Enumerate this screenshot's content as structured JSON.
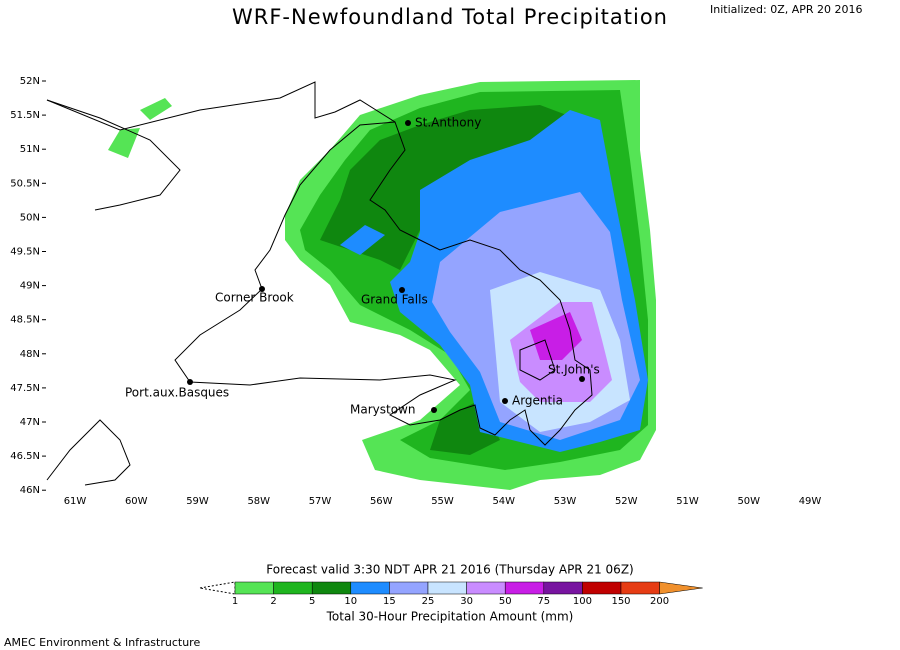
{
  "header": {
    "title": "WRF-Newfoundland Total Precipitation",
    "initialized": "Initialized: 0Z, APR 20 2016"
  },
  "map": {
    "lat_labels": [
      "52N",
      "51.5N",
      "51N",
      "50.5N",
      "50N",
      "49.5N",
      "49N",
      "48.5N",
      "48N",
      "47.5N",
      "47N",
      "46.5N",
      "46N"
    ],
    "lon_labels": [
      "61W",
      "60W",
      "59W",
      "58W",
      "57W",
      "56W",
      "55W",
      "54W",
      "53W",
      "52W",
      "51W",
      "50W",
      "49W"
    ],
    "cities": [
      "St.Anthony",
      "Corner Brook",
      "Grand Falls",
      "Port.aux.Basques",
      "Marystown",
      "Argentia",
      "St.John's"
    ]
  },
  "legend": {
    "valid": "Forecast valid 3:30 NDT APR 21 2016 (Thursday APR 21 06Z)",
    "levels": [
      1,
      2,
      5,
      10,
      15,
      25,
      30,
      50,
      75,
      100,
      150,
      200
    ],
    "colors": [
      "#55e455",
      "#1fb51f",
      "#0f870f",
      "#1e8cff",
      "#94a4ff",
      "#c8e4ff",
      "#c98cff",
      "#c81ee6",
      "#7814a0",
      "#c00000",
      "#e63c14",
      "#f0902c"
    ],
    "label": "Total 30-Hour Precipitation Amount (mm)"
  },
  "footer": "AMEC Environment & Infrastructure"
}
